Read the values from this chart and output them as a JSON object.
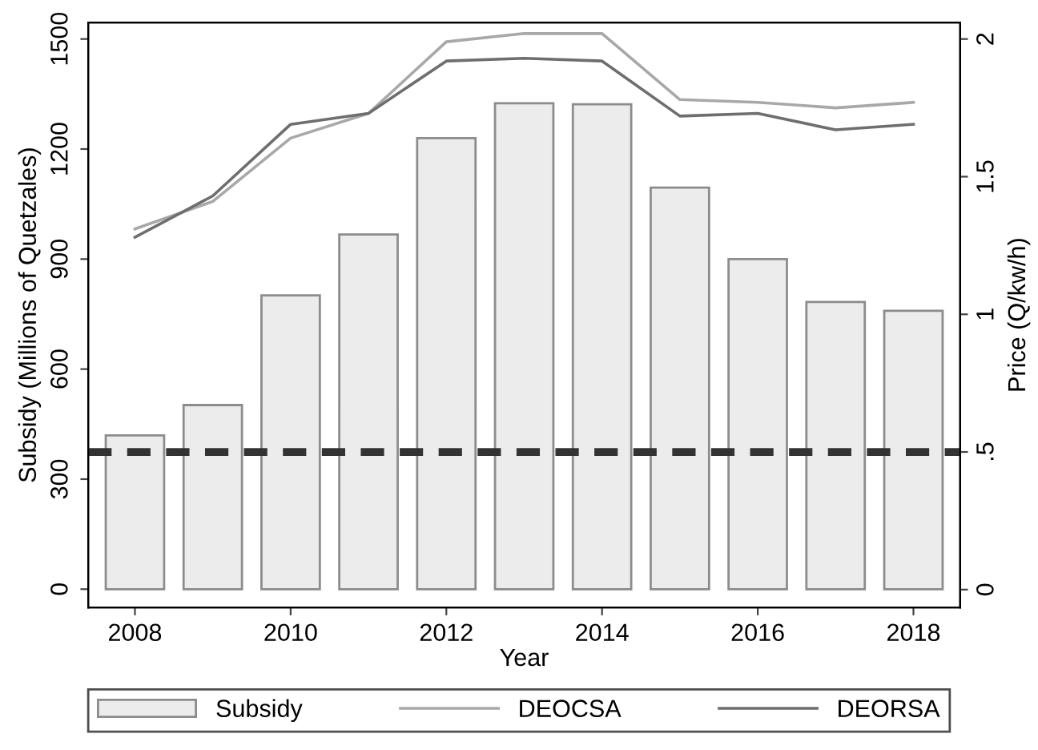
{
  "chart_data": {
    "type": "bar",
    "xlabel": "Year",
    "ylabel": "Subsidy (Millions of Quetzales)",
    "y2label": "Price (Q/kw/h)",
    "x": [
      2008,
      2009,
      2010,
      2011,
      2012,
      2013,
      2014,
      2015,
      2016,
      2017,
      2018
    ],
    "series": [
      {
        "name": "Subsidy",
        "color": "#ececec",
        "values": [
          419,
          502,
          801,
          967,
          1230,
          1325,
          1322,
          1095,
          900,
          783,
          759
        ]
      },
      {
        "name": "DEOCSA",
        "type": "line",
        "axis": "y2",
        "color": "#a8a8a8",
        "values": [
          1.31,
          1.41,
          1.64,
          1.73,
          1.99,
          2.02,
          2.02,
          1.78,
          1.77,
          1.75,
          1.77
        ]
      },
      {
        "name": "DEORSA",
        "type": "line",
        "axis": "y2",
        "color": "#6e6e6e",
        "values": [
          1.28,
          1.43,
          1.69,
          1.73,
          1.92,
          1.93,
          1.92,
          1.72,
          1.73,
          1.67,
          1.69
        ]
      }
    ],
    "xlim": [
      2007.4,
      2018.6
    ],
    "xticks": [
      2008,
      2010,
      2012,
      2014,
      2016,
      2018
    ],
    "ylim": [
      -50,
      1545
    ],
    "yticks": [
      0,
      300,
      600,
      900,
      1200,
      1500
    ],
    "y2lim": [
      -0.065,
      2.06
    ],
    "y2ticks": [
      0,
      {
        "value": 0.5,
        "label": ".5"
      },
      1,
      1.5,
      2
    ],
    "ref_lines": [
      {
        "axis": "y2",
        "value": 0.5,
        "color": "#333333",
        "line_style": "dashed"
      }
    ],
    "grid": false,
    "legend": "bottom",
    "marker": "none",
    "line_style": "solid"
  }
}
